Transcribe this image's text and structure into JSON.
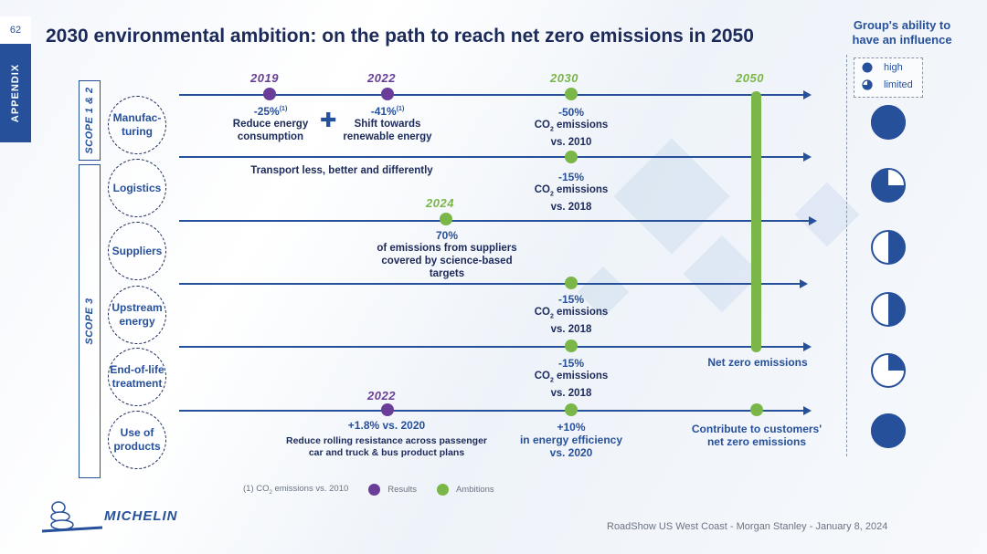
{
  "page": {
    "number": "62",
    "section": "APPENDIX",
    "title": "2030 environmental ambition: on the path to reach net zero emissions in 2050"
  },
  "scopes": {
    "scope12": "SCOPE 1 & 2",
    "scope3": "SCOPE 3"
  },
  "categories": {
    "manufacturing": "Manufac-\nturing",
    "logistics": "Logistics",
    "suppliers": "Suppliers",
    "upstream": "Upstream energy",
    "endoflife": "End-of-life treatment",
    "use": "Use of products"
  },
  "manufacturing": {
    "y2019": "2019",
    "y2019_value": "-25%",
    "y2019_note": "(1)",
    "y2019_desc": "Reduce energy consumption",
    "plus": "✚",
    "y2022": "2022",
    "y2022_value": "-41%",
    "y2022_note": "(1)",
    "y2022_desc": "Shift towards renewable energy",
    "y2030": "2030",
    "y2030_value": "-50%",
    "y2030_l2a": "CO",
    "y2030_sub": "2",
    "y2030_l2b": " emissions",
    "y2030_l3": "vs. 2010",
    "y2050": "2050"
  },
  "logistics": {
    "desc": "Transport less, better and differently",
    "value": "-15%",
    "l2a": "CO",
    "sub": "2",
    "l2b": " emissions",
    "l3": "vs. 2018"
  },
  "suppliers": {
    "year": "2024",
    "value": "70%",
    "desc": "of emissions from suppliers covered by science-based targets"
  },
  "upstream": {
    "value": "-15%",
    "l2a": "CO",
    "sub": "2",
    "l2b": " emissions",
    "l3": "vs. 2018"
  },
  "endoflife": {
    "value": "-15%",
    "l2a": "CO",
    "sub": "2",
    "l2b": " emissions",
    "l3": "vs. 2018",
    "net_zero": "Net zero emissions"
  },
  "use": {
    "year": "2022",
    "result_value": "+1.8% vs. 2020",
    "result_desc": "Reduce rolling resistance across passenger car and truck & bus product plans",
    "value": "+10%",
    "desc1": "in energy efficiency",
    "desc2": "vs. 2020",
    "contribute": "Contribute to customers' net zero emissions"
  },
  "influence": {
    "title": "Group's ability to have an influence",
    "legend_high": "high",
    "legend_limited": "limited",
    "levels": [
      1.0,
      0.75,
      0.5,
      0.5,
      0.25,
      1.0
    ]
  },
  "footnote": {
    "text_a": "(1)   CO",
    "text_sub": "2",
    "text_b": " emissions vs. 2010",
    "results": "Results",
    "ambitions": "Ambitions"
  },
  "footer": "RoadShow US West Coast - Morgan Stanley - January 8, 2024",
  "logo": "MICHELIN",
  "colors": {
    "navy": "#27509b",
    "purple": "#6a3d98",
    "green": "#7ab648"
  }
}
